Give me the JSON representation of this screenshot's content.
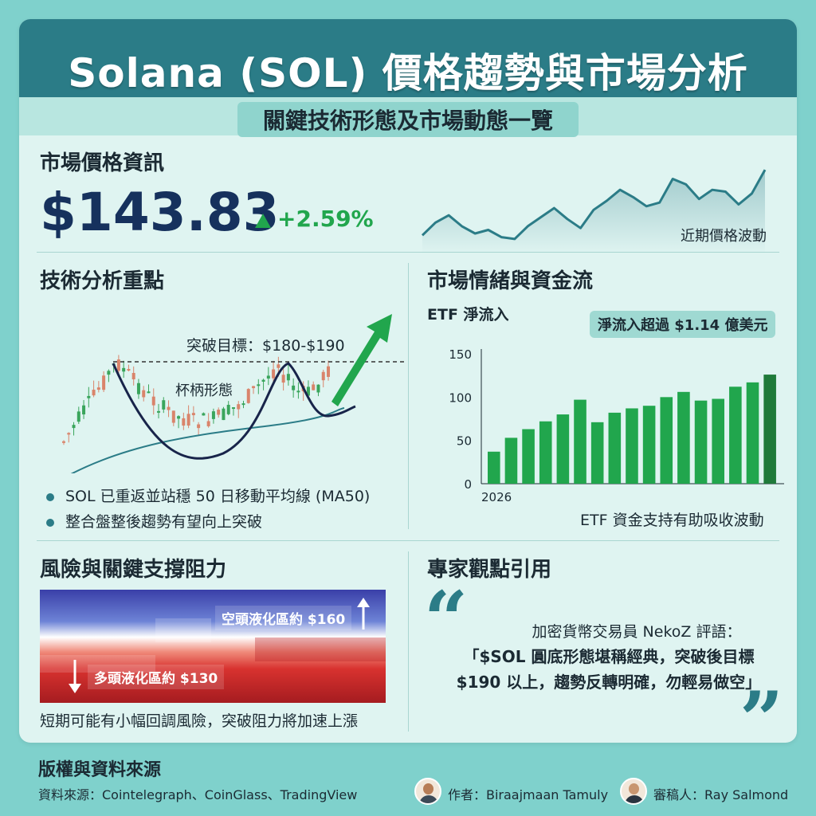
{
  "header": {
    "title": "Solana (SOL) 價格趨勢與市場分析",
    "subtitle": "關鍵技術形態及市場動態一覽"
  },
  "market_info": {
    "title": "市場價格資訊",
    "price": "$143.83",
    "change": "+2.59%",
    "sparkline_label": "近期價格波動"
  },
  "technical": {
    "title": "技術分析重點",
    "breakout_target": "突破目標：$180-$190",
    "pattern_label": "杯柄形態",
    "bullets": [
      "SOL 已重返並站穩 50 日移動平均線 (MA50)",
      "整合盤整後趨勢有望向上突破"
    ]
  },
  "sentiment": {
    "title": "市場情緒與資金流",
    "etf_label": "ETF 淨流入",
    "callout": "淨流入超過 $1.14 億美元",
    "note": "ETF 資金支持有助吸收波動"
  },
  "risk": {
    "title": "風險與關鍵支撐阻力",
    "short_liq": "空頭液化區約 $160",
    "long_liq": "多頭液化區約 $130",
    "note": "短期可能有小幅回調風險，突破阻力將加速上漲"
  },
  "expert": {
    "title": "專家觀點引用",
    "speaker": "加密貨幣交易員 NekoZ 評語：",
    "lines": [
      "「$SOL 圓底形態堪稱經典，突破後目標",
      "$190 以上，趨勢反轉明確，勿輕易做空」"
    ]
  },
  "footer": {
    "title": "版權與資料來源",
    "sources": "資料來源：Cointelegraph、CoinGlass、TradingView",
    "author": "作者：Biraajmaan Tamuly",
    "reviewer": "審稿人：Ray Salmond"
  },
  "colors": {
    "teal": "#2b7c87",
    "green": "#21a64d",
    "dark_green": "#1f7a3a",
    "navy": "#16315d"
  },
  "chart_data": [
    {
      "type": "line",
      "title": "",
      "series": [
        {
          "values": [
            130,
            137,
            141,
            135,
            131,
            133,
            129,
            128,
            135,
            140,
            145,
            139,
            134,
            144,
            149,
            155,
            151,
            146,
            148,
            161,
            158,
            150,
            155,
            154,
            147,
            153,
            166
          ]
        }
      ]
    },
    {
      "type": "bar",
      "title": "ETF 淨流入",
      "x_first_label": "2026",
      "yticks": [
        0,
        50,
        100,
        150
      ],
      "ylim": [
        0,
        150
      ],
      "values": [
        37,
        53,
        63,
        72,
        80,
        97,
        71,
        82,
        87,
        90,
        100,
        106,
        96,
        98,
        112,
        117,
        126
      ],
      "highlight_last": true
    }
  ]
}
